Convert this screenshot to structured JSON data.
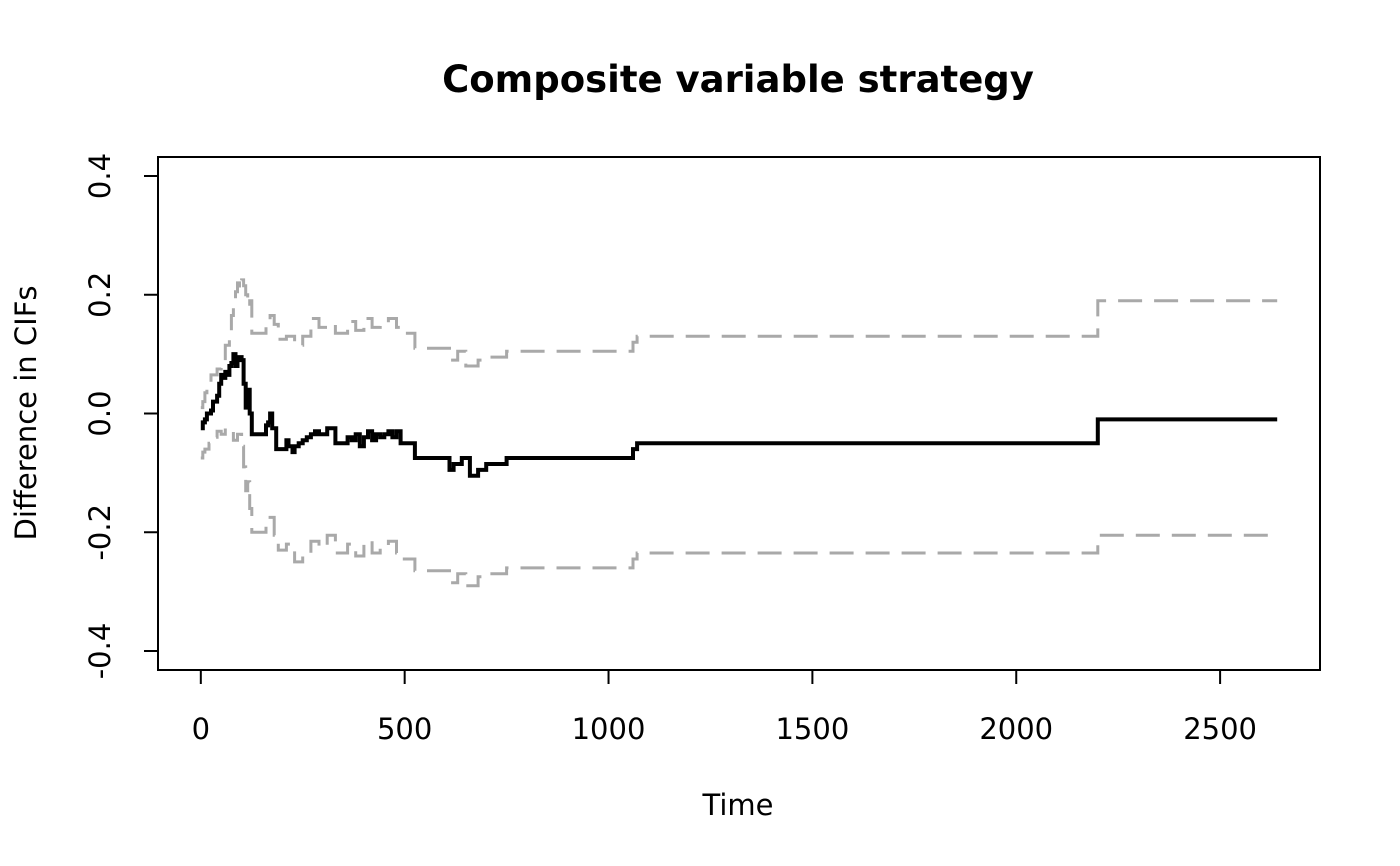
{
  "chart_data": {
    "type": "line",
    "title": "Composite variable strategy",
    "xlabel": "Time",
    "ylabel": "Difference in CIFs",
    "xlim": [
      -105,
      2745
    ],
    "ylim": [
      -0.432,
      0.432
    ],
    "x_ticks": [
      0,
      500,
      1000,
      1500,
      2000,
      2500
    ],
    "x_tick_labels": [
      "0",
      "500",
      "1000",
      "1500",
      "2000",
      "2500"
    ],
    "y_ticks": [
      -0.4,
      -0.2,
      0.0,
      0.2,
      0.4
    ],
    "y_tick_labels": [
      "-0.4",
      "-0.2",
      "0.0",
      "0.2",
      "0.4"
    ],
    "grid": false,
    "legend": "none",
    "colors": {
      "estimate": "#000000",
      "ci_band": "#a9a9a9"
    },
    "series": [
      {
        "role": "estimate",
        "style": "solid-step",
        "x": [
          0,
          5,
          10,
          15,
          25,
          30,
          40,
          45,
          50,
          55,
          60,
          65,
          70,
          75,
          80,
          85,
          90,
          95,
          100,
          105,
          110,
          115,
          120,
          125,
          160,
          165,
          170,
          175,
          185,
          190,
          210,
          215,
          225,
          230,
          240,
          250,
          260,
          270,
          280,
          290,
          310,
          330,
          360,
          370,
          380,
          390,
          400,
          410,
          420,
          430,
          440,
          450,
          460,
          470,
          480,
          490,
          525,
          610,
          620,
          640,
          660,
          680,
          700,
          750,
          1060,
          1070,
          2200,
          2640
        ],
        "y": [
          -0.025,
          -0.015,
          -0.01,
          0.0,
          0.005,
          0.02,
          0.03,
          0.05,
          0.065,
          0.06,
          0.07,
          0.065,
          0.08,
          0.085,
          0.1,
          0.08,
          0.09,
          0.095,
          0.09,
          0.05,
          0.01,
          0.04,
          0.0,
          -0.035,
          -0.02,
          -0.015,
          0.0,
          -0.025,
          -0.06,
          -0.06,
          -0.045,
          -0.055,
          -0.065,
          -0.055,
          -0.05,
          -0.045,
          -0.04,
          -0.035,
          -0.03,
          -0.035,
          -0.025,
          -0.05,
          -0.04,
          -0.045,
          -0.035,
          -0.055,
          -0.04,
          -0.03,
          -0.045,
          -0.035,
          -0.04,
          -0.035,
          -0.03,
          -0.04,
          -0.03,
          -0.05,
          -0.075,
          -0.095,
          -0.085,
          -0.075,
          -0.105,
          -0.095,
          -0.085,
          -0.075,
          -0.06,
          -0.05,
          -0.01,
          -0.01
        ]
      },
      {
        "role": "upper-ci",
        "style": "dashed-step",
        "x": [
          0,
          5,
          10,
          15,
          25,
          40,
          50,
          60,
          70,
          75,
          80,
          85,
          90,
          95,
          100,
          105,
          110,
          115,
          120,
          125,
          160,
          170,
          180,
          190,
          210,
          230,
          250,
          270,
          290,
          310,
          330,
          360,
          380,
          400,
          420,
          440,
          460,
          480,
          490,
          525,
          610,
          630,
          650,
          680,
          700,
          750,
          1060,
          1070,
          2200,
          2640
        ],
        "y": [
          0.01,
          0.02,
          0.035,
          0.05,
          0.065,
          0.075,
          0.09,
          0.115,
          0.14,
          0.165,
          0.18,
          0.205,
          0.22,
          0.21,
          0.225,
          0.215,
          0.2,
          0.18,
          0.19,
          0.135,
          0.15,
          0.165,
          0.15,
          0.125,
          0.13,
          0.115,
          0.13,
          0.16,
          0.145,
          0.15,
          0.135,
          0.155,
          0.14,
          0.16,
          0.145,
          0.15,
          0.16,
          0.145,
          0.135,
          0.11,
          0.09,
          0.105,
          0.08,
          0.09,
          0.095,
          0.105,
          0.12,
          0.13,
          0.19,
          0.19
        ]
      },
      {
        "role": "lower-ci",
        "style": "dashed-step",
        "x": [
          0,
          5,
          10,
          20,
          30,
          40,
          50,
          60,
          70,
          80,
          90,
          100,
          105,
          110,
          115,
          120,
          125,
          160,
          170,
          180,
          190,
          210,
          230,
          250,
          270,
          290,
          310,
          330,
          360,
          380,
          400,
          420,
          440,
          460,
          480,
          490,
          525,
          610,
          630,
          650,
          680,
          700,
          750,
          1060,
          1070,
          2200,
          2640
        ],
        "y": [
          -0.075,
          -0.065,
          -0.06,
          -0.05,
          -0.04,
          -0.03,
          -0.035,
          -0.025,
          -0.03,
          -0.045,
          -0.035,
          -0.055,
          -0.09,
          -0.13,
          -0.115,
          -0.16,
          -0.2,
          -0.185,
          -0.175,
          -0.205,
          -0.23,
          -0.22,
          -0.25,
          -0.235,
          -0.215,
          -0.225,
          -0.205,
          -0.235,
          -0.22,
          -0.24,
          -0.215,
          -0.235,
          -0.225,
          -0.215,
          -0.235,
          -0.245,
          -0.265,
          -0.285,
          -0.27,
          -0.29,
          -0.275,
          -0.27,
          -0.26,
          -0.245,
          -0.235,
          -0.205,
          -0.205
        ]
      }
    ]
  }
}
